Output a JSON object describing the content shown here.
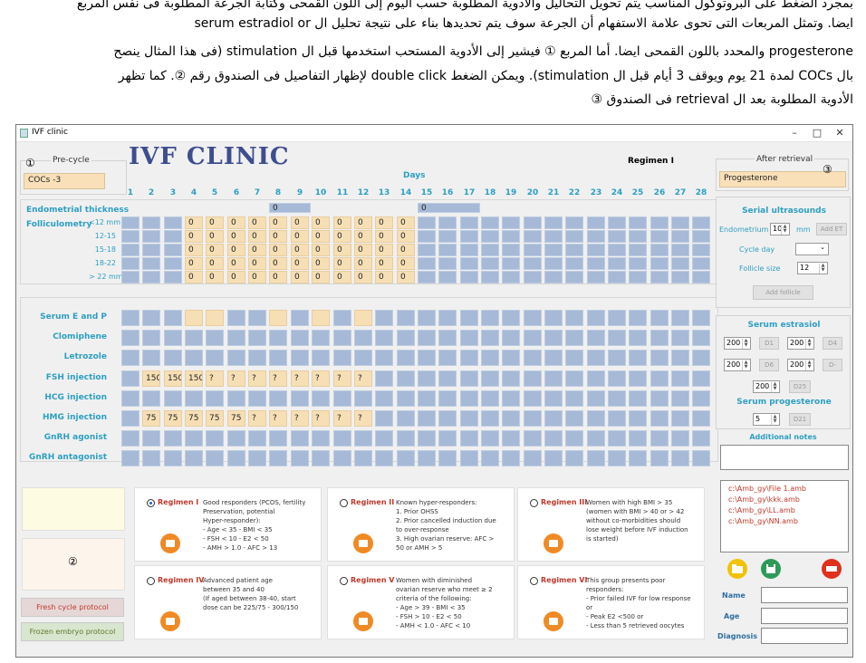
{
  "instructions": {
    "line1": "بمجرد الضغط على البروتوكول المناسب يتم تحويل التحاليل والأدوية المطلوبة حسب اليوم إلى اللون القمحى وكتابة الجرعة المطلوبة فى نفس المربع",
    "line2": "ايضا. وتمثل المربعات التى تحوى علامة الاستفهام أن الجرعة سوف يتم تحديدها بناء على نتيجة تحليل ال serum estradiol or",
    "line3": "progesterone والمحدد باللون القمحى ايضا. أما المربع ① فيشير إلى الأدوية المستحب استخدمها قبل ال stimulation (فى هذا المثال ينصح",
    "line4": "بال COCs لمدة 21 يوم ويوقف 3 أيام قبل ال stimulation). ويمكن الضغط double click لإظهار التفاصيل فى الصندوق رقم ②. كما تظهر",
    "line5": "الأدوية المطلوبة بعد ال retrieval فى الصندوق ③"
  },
  "window": {
    "title": "IVF clinic",
    "minimize": "–",
    "maximize": "□",
    "close": "✕"
  },
  "brand": "IVF CLINIC",
  "regimen_header": "Regimen I",
  "precycle": {
    "label": "Pre-cycle",
    "value": "COCs -3",
    "marker": "①"
  },
  "after_retrieval": {
    "label": "After retrieval",
    "value": "Progesterone",
    "marker": "③"
  },
  "days_label": "Days",
  "days": [
    "1",
    "2",
    "3",
    "4",
    "5",
    "6",
    "7",
    "8",
    "9",
    "10",
    "11",
    "12",
    "13",
    "14",
    "15",
    "16",
    "17",
    "18",
    "19",
    "20",
    "21",
    "22",
    "23",
    "24",
    "25",
    "26",
    "27",
    "28"
  ],
  "ultrasound": {
    "endometrial_label": "Endometrial thickness",
    "folliculometry_label": "Folliculometry",
    "sizes": [
      "<12 mm",
      "12-15",
      "15-18",
      "18-22",
      "> 22 mm"
    ],
    "endometrial_day8": "0",
    "endometrial_day15": "0"
  },
  "rows": [
    {
      "label": "Serum E and P",
      "values": [
        "",
        "",
        "",
        "",
        "",
        "",
        "",
        "",
        "",
        "",
        "",
        "",
        "",
        "",
        "",
        "",
        "",
        "",
        "",
        "",
        "",
        "",
        "",
        "",
        "",
        "",
        "",
        ""
      ],
      "orange": [
        4,
        5,
        8,
        10,
        12
      ]
    },
    {
      "label": "Clomiphene",
      "values": [
        "",
        "",
        "",
        "",
        "",
        "",
        "",
        "",
        "",
        "",
        "",
        "",
        "",
        "",
        "",
        "",
        "",
        "",
        "",
        "",
        "",
        "",
        "",
        "",
        "",
        "",
        "",
        ""
      ],
      "orange": []
    },
    {
      "label": "Letrozole",
      "values": [
        "",
        "",
        "",
        "",
        "",
        "",
        "",
        "",
        "",
        "",
        "",
        "",
        "",
        "",
        "",
        "",
        "",
        "",
        "",
        "",
        "",
        "",
        "",
        "",
        "",
        "",
        "",
        ""
      ],
      "orange": []
    },
    {
      "label": "FSH injection",
      "values": [
        "",
        "150",
        "150",
        "150",
        "?",
        "?",
        "?",
        "?",
        "?",
        "?",
        "?",
        "?",
        "",
        "",
        "",
        "",
        "",
        "",
        "",
        "",
        "",
        "",
        "",
        "",
        "",
        "",
        "",
        ""
      ],
      "orange": [
        2,
        3,
        4,
        5,
        6,
        7,
        8,
        9,
        10,
        11,
        12
      ]
    },
    {
      "label": "HCG injection",
      "values": [
        "",
        "",
        "",
        "",
        "",
        "",
        "",
        "",
        "",
        "",
        "",
        "",
        "",
        "",
        "",
        "",
        "",
        "",
        "",
        "",
        "",
        "",
        "",
        "",
        "",
        "",
        "",
        ""
      ],
      "orange": []
    },
    {
      "label": "HMG injection",
      "values": [
        "",
        "75",
        "75",
        "75",
        "75",
        "75",
        "?",
        "?",
        "?",
        "?",
        "?",
        "?",
        "",
        "",
        "",
        "",
        "",
        "",
        "",
        "",
        "",
        "",
        "",
        "",
        "",
        "",
        "",
        ""
      ],
      "orange": [
        2,
        3,
        4,
        5,
        6,
        7,
        8,
        9,
        10,
        11,
        12
      ]
    },
    {
      "label": "GnRH agonist",
      "values": [
        "",
        "",
        "",
        "",
        "",
        "",
        "",
        "",
        "",
        "",
        "",
        "",
        "",
        "",
        "",
        "",
        "",
        "",
        "",
        "",
        "",
        "",
        "",
        "",
        "",
        "",
        "",
        ""
      ],
      "orange": []
    },
    {
      "label": "GnRH antagonist",
      "values": [
        "",
        "",
        "",
        "",
        "",
        "",
        "",
        "",
        "",
        "",
        "",
        "",
        "",
        "",
        "",
        "",
        "",
        "",
        "",
        "",
        "",
        "",
        "",
        "",
        "",
        "",
        "",
        ""
      ],
      "orange": []
    }
  ],
  "serial_us": {
    "title": "Serial ultrasounds",
    "endometrium_label": "Endometrium",
    "endometrium_value": "10",
    "mm": "mm",
    "add_et": "Add ET",
    "cycle_day_label": "Cycle day",
    "follicle_size_label": "Follicle size",
    "follicle_size_value": "12",
    "add_follicle": "Add follicle"
  },
  "serum_estradiol": {
    "title": "Serum estrasiol",
    "v1": "200",
    "b1": "D1",
    "v2": "200",
    "b2": "D4",
    "v3": "200",
    "b3": "D6",
    "v4": "200",
    "b4": "D-",
    "v5": "200",
    "b5": "D25"
  },
  "serum_progesterone": {
    "title": "Serum progesterone",
    "value": "5",
    "btn": "D21"
  },
  "additional_notes": {
    "title": "Additional notes"
  },
  "files": [
    "c:\\Amb_gy\\File 1.amb",
    "c:\\Amb_gy\\kkk.amb",
    "c:\\Amb_gy\\LL.amb",
    "c:\\Amb_gy\\NN.amb"
  ],
  "details_marker": "②",
  "buttons": {
    "fresh": "Fresh cycle protocol",
    "frozen": "Frozen embryo protocol"
  },
  "patient": {
    "name": "Name",
    "age": "Age",
    "diagnosis": "Diagnosis"
  },
  "regimens": [
    {
      "name": "Regimen I",
      "desc": "Good responders (PCOS, fertility\nPreservation, potential\nHyper-responder):\n- Age < 35   - BMI < 35\n- FSH < 10   - E2 < 50\n- AMH > 1.0  - AFC > 13"
    },
    {
      "name": "Regimen II",
      "desc": "Known hyper-responders:\n1. Prior OHSS\n2. Prior cancelled induction due\nto over-response\n3. High ovarian reserve: AFC >\n50 or AMH > 5"
    },
    {
      "name": "Regimen III",
      "desc": "Women with high BMI > 35\n(women with BMI > 40 or > 42\nwithout co-morbidities should\nlose weight before IVF induction\nis started)"
    },
    {
      "name": "Regimen IV",
      "desc": "Advanced patient age\nbetween 35 and 40\n(If aged between 38-40, start\ndose can be 225/75 - 300/150"
    },
    {
      "name": "Regimen V",
      "desc": "Women with diminished\novarian reserve who meet ≥ 2\ncriteria of the following:\n- Age > 39  - BMI < 35\n- FSH > 10 - E2 < 50\n- AMH < 1.0  - AFC < 10"
    },
    {
      "name": "Regimen VI",
      "desc": "This group presents poor\nresponders:\n- Prior failed IVF for low response\nor\n- Peak E2 <500 or\n- Less than 5 retrieved oocytes"
    }
  ],
  "colors": {
    "blue_cell": "#a6b9d6",
    "orange_cell": "#f7dfb5",
    "label_blue": "#2e9fc2",
    "brand": "#3f4d8f"
  }
}
